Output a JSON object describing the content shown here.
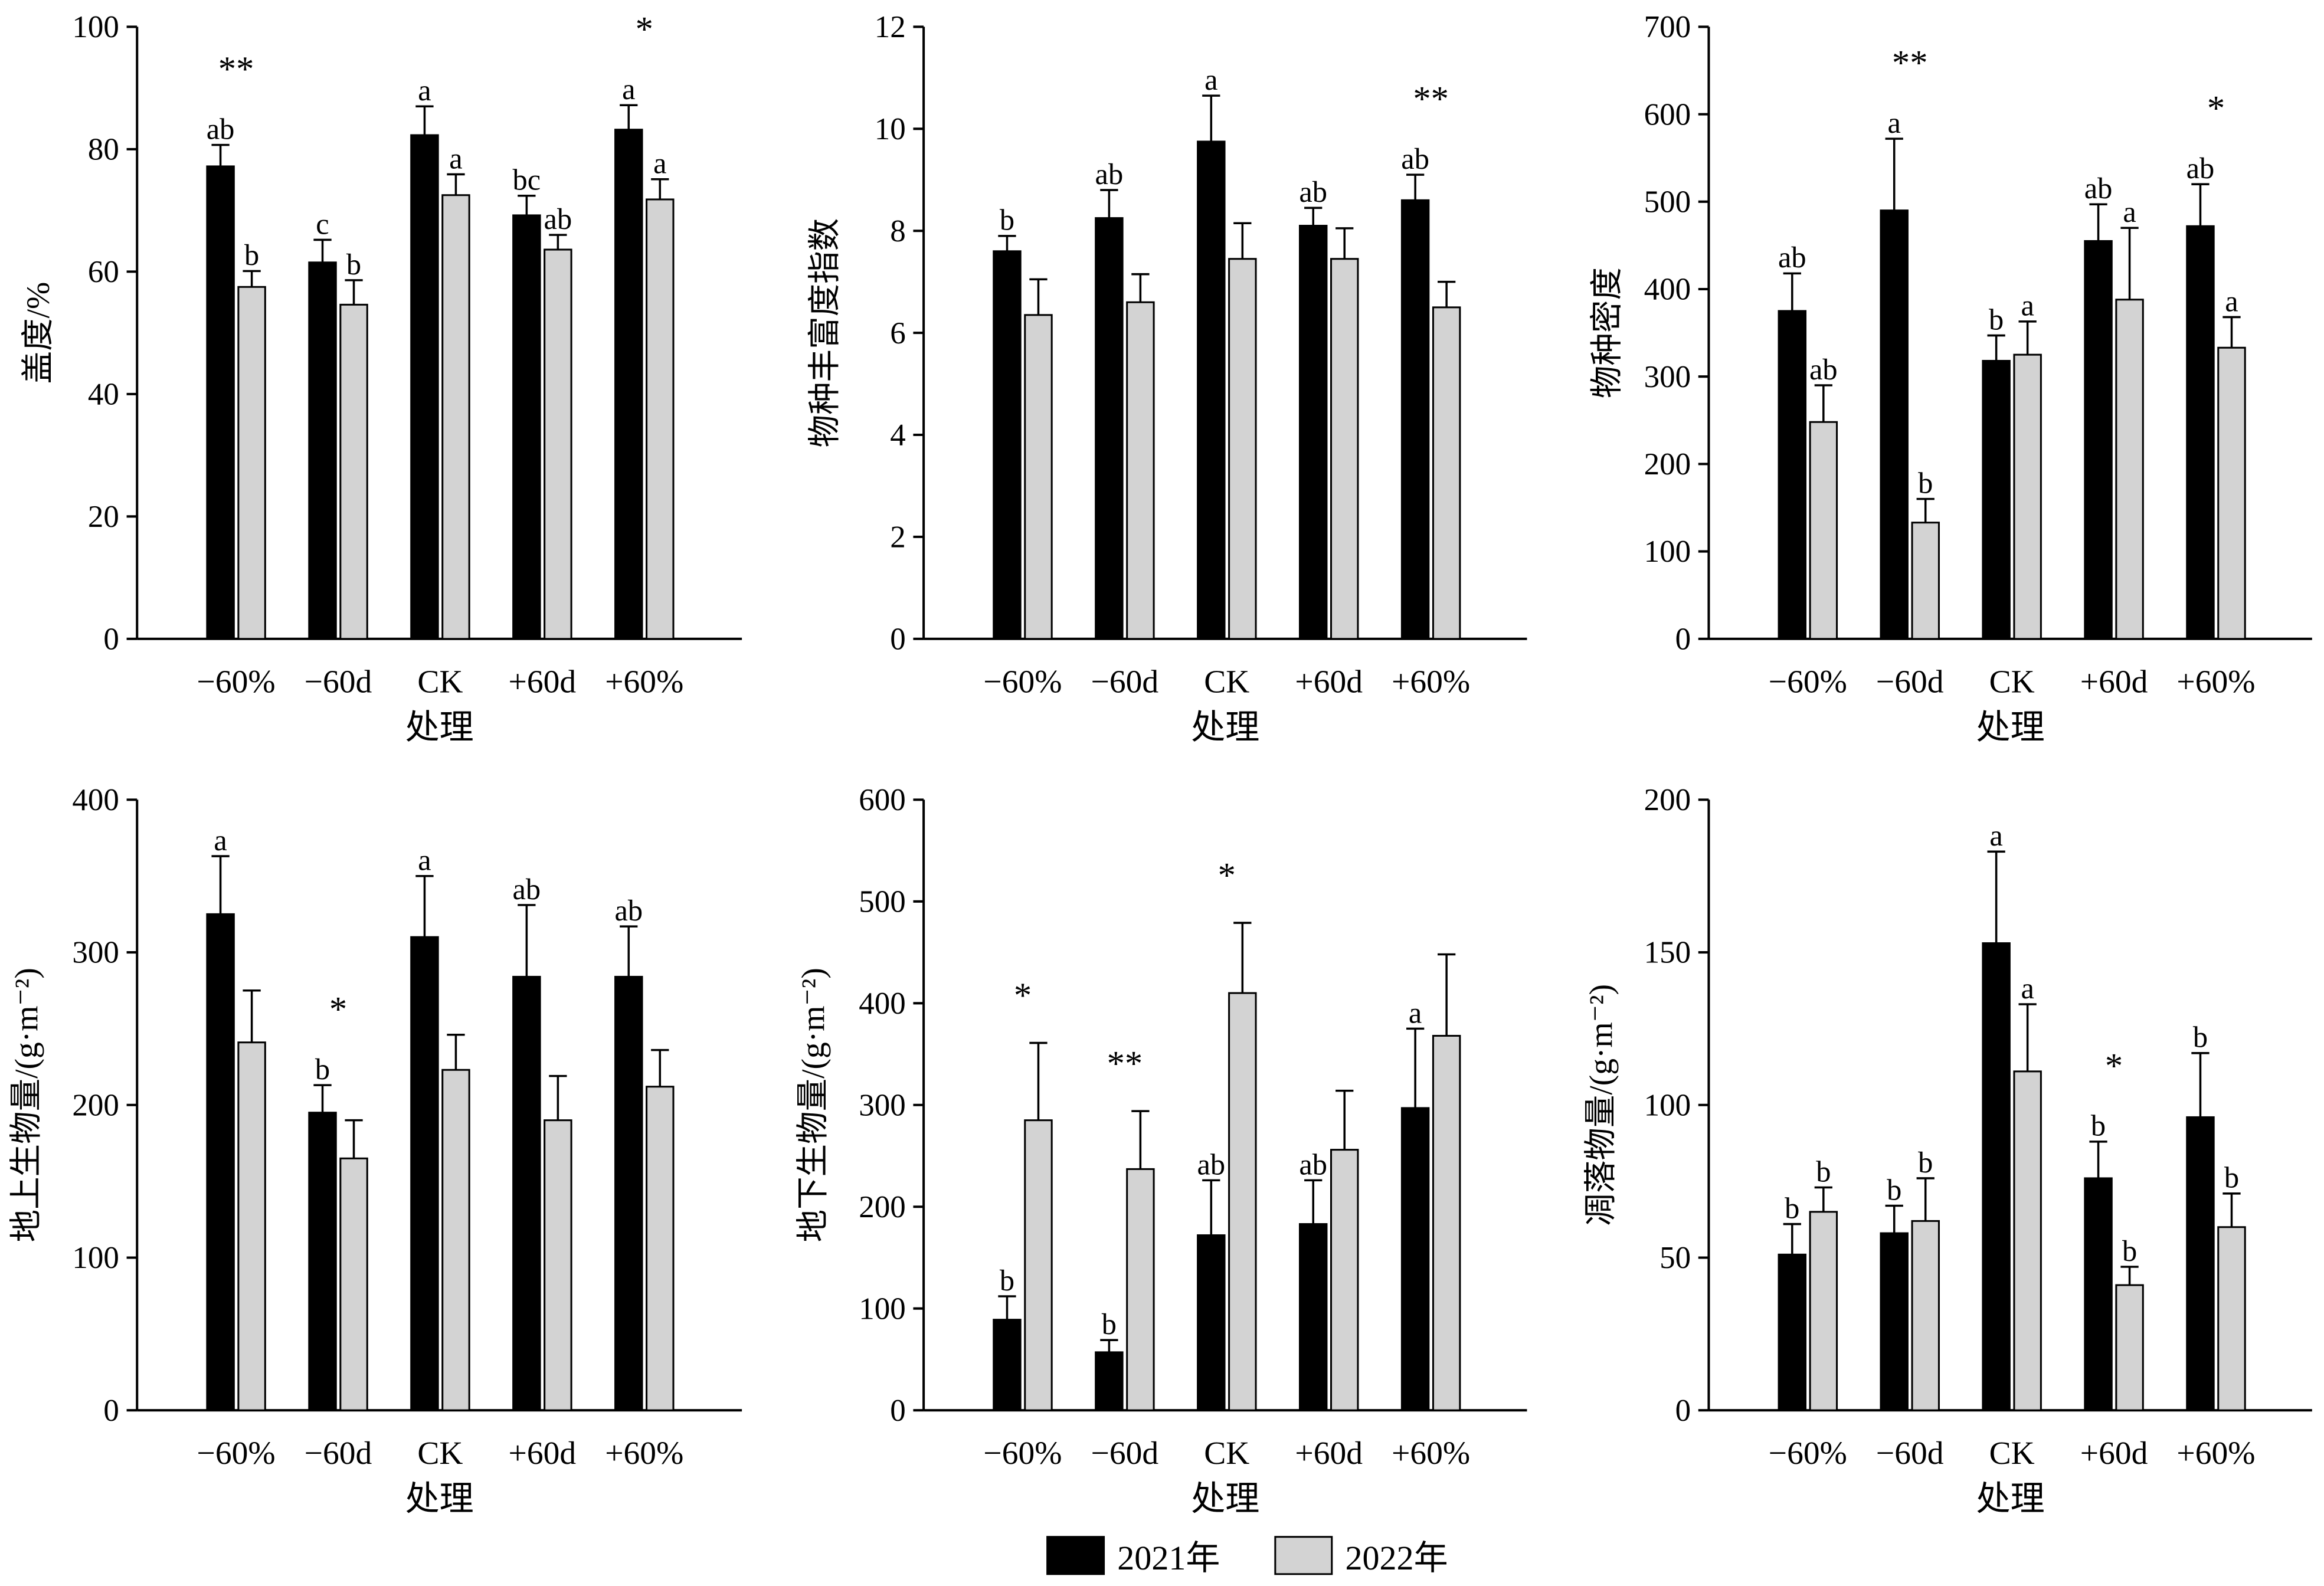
{
  "chart_data": [
    {
      "type": "bar",
      "ylabel": "盖度/%",
      "xlabel": "处理",
      "categories": [
        "−60%",
        "−60d",
        "CK",
        "+60d",
        "+60%"
      ],
      "ylim": [
        0,
        100
      ],
      "yticks": [
        0,
        20,
        40,
        60,
        80,
        100
      ],
      "series": [
        {
          "name": "2021年",
          "values": [
            77.2,
            61.5,
            82.3,
            69.2,
            83.2
          ],
          "errors": [
            3.5,
            3.7,
            4.7,
            3.2,
            4.0
          ]
        },
        {
          "name": "2022年",
          "values": [
            57.5,
            54.6,
            72.5,
            63.6,
            71.8
          ],
          "errors": [
            2.6,
            4.0,
            3.4,
            2.4,
            3.3
          ]
        }
      ],
      "letters": [
        [
          "ab",
          "b"
        ],
        [
          "c",
          "b"
        ],
        [
          "a",
          "a"
        ],
        [
          "bc",
          "ab"
        ],
        [
          "a",
          "a"
        ]
      ],
      "significance": [
        "**",
        "",
        "",
        "",
        "*"
      ]
    },
    {
      "type": "bar",
      "ylabel": "物种丰富度指数",
      "xlabel": "处理",
      "categories": [
        "−60%",
        "−60d",
        "CK",
        "+60d",
        "+60%"
      ],
      "ylim": [
        0,
        12
      ],
      "yticks": [
        0,
        2,
        4,
        6,
        8,
        10,
        12
      ],
      "series": [
        {
          "name": "2021年",
          "values": [
            7.6,
            8.25,
            9.75,
            8.1,
            8.6
          ],
          "errors": [
            0.3,
            0.55,
            0.9,
            0.35,
            0.5
          ]
        },
        {
          "name": "2022年",
          "values": [
            6.35,
            6.6,
            7.45,
            7.45,
            6.5
          ],
          "errors": [
            0.7,
            0.55,
            0.7,
            0.6,
            0.5
          ]
        }
      ],
      "letters": [
        [
          "b",
          ""
        ],
        [
          "ab",
          ""
        ],
        [
          "a",
          ""
        ],
        [
          "ab",
          ""
        ],
        [
          "ab",
          ""
        ]
      ],
      "significance": [
        "",
        "",
        "",
        "",
        "**"
      ]
    },
    {
      "type": "bar",
      "ylabel": "物种密度",
      "xlabel": "处理",
      "categories": [
        "−60%",
        "−60d",
        "CK",
        "+60d",
        "+60%"
      ],
      "ylim": [
        0,
        700
      ],
      "yticks": [
        0,
        100,
        200,
        300,
        400,
        500,
        600,
        700
      ],
      "series": [
        {
          "name": "2021年",
          "values": [
            375,
            490,
            318,
            455,
            472
          ],
          "errors": [
            43,
            82,
            29,
            42,
            48
          ]
        },
        {
          "name": "2022年",
          "values": [
            248,
            133,
            325,
            388,
            333
          ],
          "errors": [
            42,
            27,
            38,
            82,
            35
          ]
        }
      ],
      "letters": [
        [
          "ab",
          "ab"
        ],
        [
          "a",
          "b"
        ],
        [
          "b",
          "a"
        ],
        [
          "ab",
          "a"
        ],
        [
          "ab",
          "a"
        ]
      ],
      "significance": [
        "",
        "**",
        "",
        "",
        "*"
      ]
    },
    {
      "type": "bar",
      "ylabel": "地上生物量/(g·m⁻²)",
      "xlabel": "处理",
      "categories": [
        "−60%",
        "−60d",
        "CK",
        "+60d",
        "+60%"
      ],
      "ylim": [
        0,
        400
      ],
      "yticks": [
        0,
        100,
        200,
        300,
        400
      ],
      "series": [
        {
          "name": "2021年",
          "values": [
            325,
            195,
            310,
            284,
            284
          ],
          "errors": [
            38,
            18,
            40,
            47,
            33
          ]
        },
        {
          "name": "2022年",
          "values": [
            241,
            165,
            223,
            190,
            212
          ],
          "errors": [
            34,
            25,
            23,
            29,
            24
          ]
        }
      ],
      "letters": [
        [
          "a",
          ""
        ],
        [
          "b",
          ""
        ],
        [
          "a",
          ""
        ],
        [
          "ab",
          ""
        ],
        [
          "ab",
          ""
        ]
      ],
      "significance": [
        "",
        "*",
        "",
        "",
        ""
      ]
    },
    {
      "type": "bar",
      "ylabel": "地下生物量/(g·m⁻²)",
      "xlabel": "处理",
      "categories": [
        "−60%",
        "−60d",
        "CK",
        "+60d",
        "+60%"
      ],
      "ylim": [
        0,
        600
      ],
      "yticks": [
        0,
        100,
        200,
        300,
        400,
        500,
        600
      ],
      "series": [
        {
          "name": "2021年",
          "values": [
            89,
            57,
            172,
            183,
            297
          ],
          "errors": [
            23,
            12,
            54,
            43,
            78
          ]
        },
        {
          "name": "2022年",
          "values": [
            285,
            237,
            410,
            256,
            368
          ],
          "errors": [
            76,
            57,
            69,
            58,
            80
          ]
        }
      ],
      "letters": [
        [
          "b",
          ""
        ],
        [
          "b",
          ""
        ],
        [
          "ab",
          ""
        ],
        [
          "ab",
          ""
        ],
        [
          "a",
          ""
        ]
      ],
      "significance": [
        "*",
        "**",
        "*",
        "",
        ""
      ]
    },
    {
      "type": "bar",
      "ylabel": "凋落物量/(g·m⁻²)",
      "xlabel": "处理",
      "categories": [
        "−60%",
        "−60d",
        "CK",
        "+60d",
        "+60%"
      ],
      "ylim": [
        0,
        200
      ],
      "yticks": [
        0,
        50,
        100,
        150,
        200
      ],
      "series": [
        {
          "name": "2021年",
          "values": [
            51,
            58,
            153,
            76,
            96
          ],
          "errors": [
            10,
            9,
            30,
            12,
            21
          ]
        },
        {
          "name": "2022年",
          "values": [
            65,
            62,
            111,
            41,
            60
          ],
          "errors": [
            8,
            14,
            22,
            6,
            11
          ]
        }
      ],
      "letters": [
        [
          "b",
          "b"
        ],
        [
          "b",
          "b"
        ],
        [
          "a",
          "a"
        ],
        [
          "b",
          "b"
        ],
        [
          "b",
          "b"
        ]
      ],
      "significance": [
        "",
        "",
        "",
        "*",
        ""
      ]
    }
  ],
  "legend": {
    "position": "bottom",
    "entries": [
      {
        "label": "2021年",
        "color": "#000000"
      },
      {
        "label": "2022年",
        "color": "#d3d3d3"
      }
    ]
  }
}
